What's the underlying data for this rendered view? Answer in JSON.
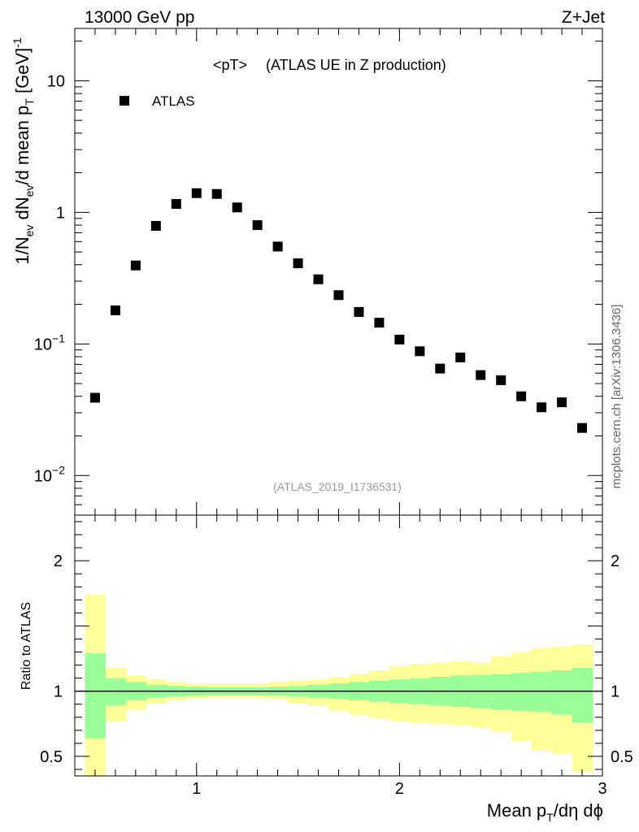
{
  "header": {
    "left": "13000 GeV pp",
    "right": "Z+Jet"
  },
  "chart_data": {
    "type": "scatter",
    "title_main": "<pT>",
    "title_sub": "(ATLAS UE in Z production)",
    "legend": [
      {
        "name": "ATLAS",
        "marker": "square",
        "color": "#000000"
      }
    ],
    "analysis_label": "(ATLAS_2019_I1736531)",
    "side_label": "mcplots.cern.ch [arXiv:1306.3436]",
    "y_label": {
      "main": "1/N",
      "sub1": "ev",
      "mid1": " dN",
      "sub2": "ev",
      "mid2": "/d mean p",
      "sub3": "T",
      "end": " [GeV]",
      "sup": "-1"
    },
    "x_label": {
      "main": "Mean p",
      "sub": "T",
      "end": "/dη dϕ"
    },
    "ratio_label": "Ratio to ATLAS",
    "xlim": [
      0.4,
      3.0
    ],
    "ylim": [
      0.005,
      25
    ],
    "ratio_ylim": [
      0.35,
      2.35
    ],
    "x_ticks": [
      {
        "v": 1,
        "label": "1"
      },
      {
        "v": 2,
        "label": "2"
      },
      {
        "v": 3,
        "label": "3"
      }
    ],
    "y_ticks": [
      {
        "v": 0.01,
        "base": "10",
        "exp": "−2"
      },
      {
        "v": 0.1,
        "base": "10",
        "exp": "−1"
      },
      {
        "v": 1,
        "base": "1",
        "exp": ""
      },
      {
        "v": 10,
        "base": "10",
        "exp": ""
      }
    ],
    "ratio_ticks": [
      {
        "v": 0.5,
        "label": "0.5"
      },
      {
        "v": 1,
        "label": "1"
      },
      {
        "v": 2,
        "label": "2"
      }
    ],
    "x": [
      0.5,
      0.6,
      0.7,
      0.8,
      0.9,
      1.0,
      1.1,
      1.2,
      1.3,
      1.4,
      1.5,
      1.6,
      1.7,
      1.8,
      1.9,
      2.0,
      2.1,
      2.2,
      2.3,
      2.4,
      2.5,
      2.6,
      2.7,
      2.8,
      2.9
    ],
    "values": [
      0.039,
      0.18,
      0.395,
      0.79,
      1.16,
      1.4,
      1.38,
      1.09,
      0.8,
      0.55,
      0.41,
      0.31,
      0.235,
      0.175,
      0.145,
      0.108,
      0.088,
      0.065,
      0.079,
      0.058,
      0.053,
      0.04,
      0.033,
      0.036,
      0.023
    ],
    "bins": [
      0.45,
      0.55,
      0.65,
      0.75,
      0.85,
      0.95,
      1.05,
      1.15,
      1.25,
      1.35,
      1.45,
      1.55,
      1.65,
      1.75,
      1.85,
      1.95,
      2.05,
      2.15,
      2.25,
      2.35,
      2.45,
      2.55,
      2.65,
      2.75,
      2.85,
      2.95
    ],
    "ratio_band_inner": {
      "color": "#99ff99",
      "upper": [
        1.29,
        1.1,
        1.07,
        1.05,
        1.04,
        1.035,
        1.03,
        1.03,
        1.03,
        1.035,
        1.04,
        1.05,
        1.06,
        1.07,
        1.08,
        1.09,
        1.1,
        1.11,
        1.12,
        1.125,
        1.13,
        1.14,
        1.15,
        1.16,
        1.18
      ],
      "lower": [
        0.64,
        0.89,
        0.93,
        0.95,
        0.96,
        0.965,
        0.97,
        0.97,
        0.97,
        0.965,
        0.96,
        0.95,
        0.94,
        0.93,
        0.92,
        0.91,
        0.9,
        0.89,
        0.88,
        0.87,
        0.86,
        0.85,
        0.84,
        0.82,
        0.76
      ]
    },
    "ratio_band_outer": {
      "color": "#ffff99",
      "upper": [
        1.74,
        1.18,
        1.12,
        1.09,
        1.07,
        1.06,
        1.06,
        1.06,
        1.06,
        1.07,
        1.08,
        1.09,
        1.11,
        1.13,
        1.16,
        1.19,
        1.21,
        1.22,
        1.23,
        1.22,
        1.27,
        1.3,
        1.33,
        1.34,
        1.36
      ],
      "lower": [
        0.35,
        0.77,
        0.86,
        0.91,
        0.93,
        0.945,
        0.95,
        0.95,
        0.95,
        0.94,
        0.91,
        0.89,
        0.85,
        0.82,
        0.79,
        0.77,
        0.76,
        0.75,
        0.74,
        0.72,
        0.69,
        0.62,
        0.55,
        0.52,
        0.38
      ]
    }
  }
}
